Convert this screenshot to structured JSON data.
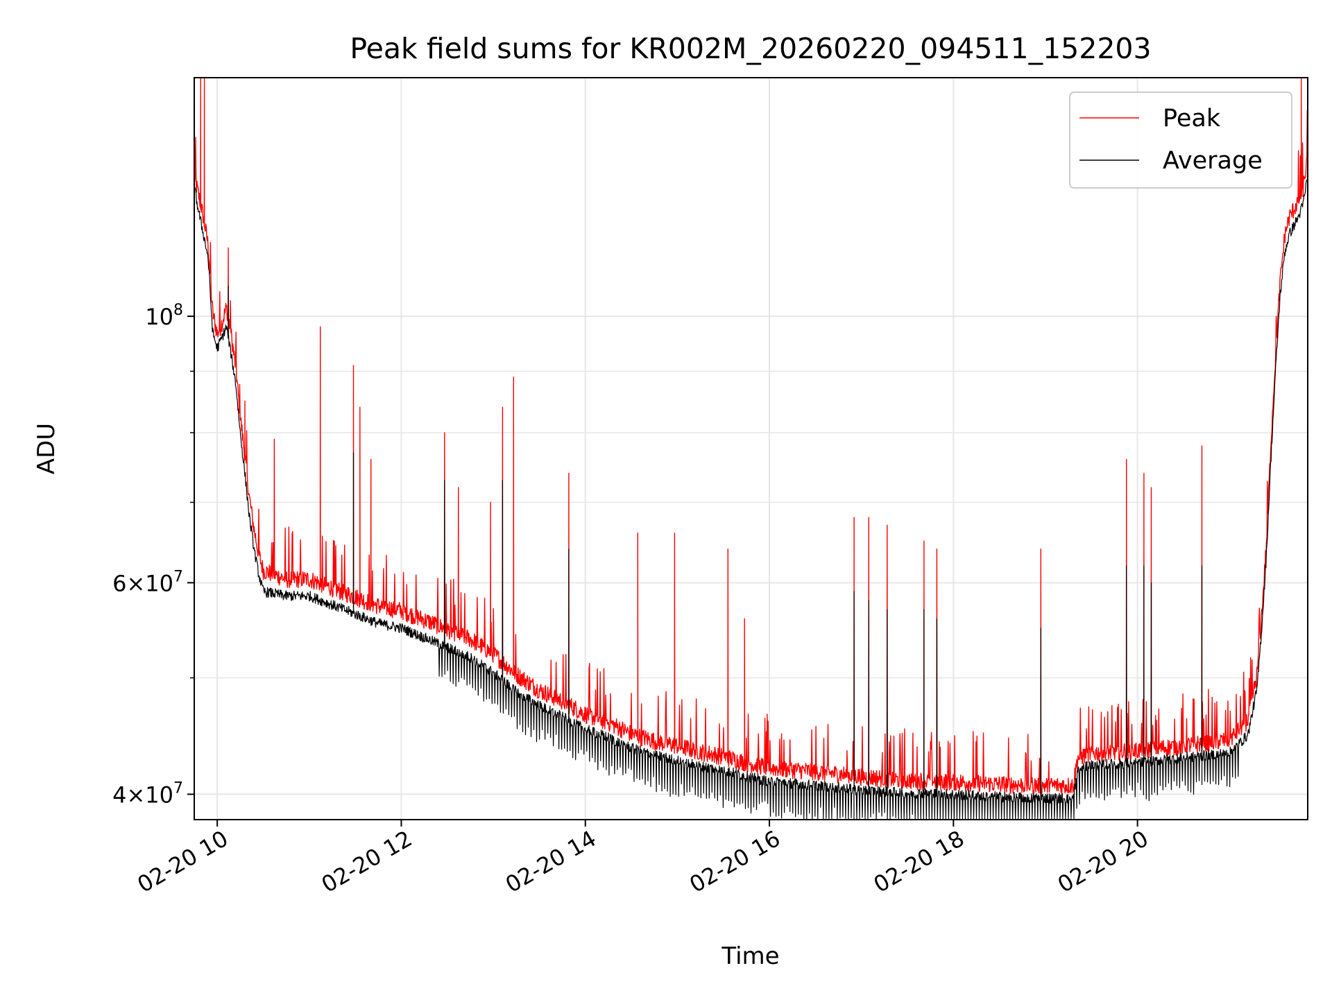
{
  "chart_data": {
    "type": "line",
    "title": "Peak field sums for KR002M_20260220_094511_152203",
    "xlabel": "Time",
    "ylabel": "ADU",
    "x_unit": "hours since 2026-02-20 00:00",
    "xlim": [
      9.75,
      21.85
    ],
    "ylim": [
      38100000,
      158000000
    ],
    "y_scale": "log",
    "grid": true,
    "legend_position": "upper right",
    "x_ticks": [
      {
        "value": 10,
        "label": "02-20 10"
      },
      {
        "value": 12,
        "label": "02-20 12"
      },
      {
        "value": 14,
        "label": "02-20 14"
      },
      {
        "value": 16,
        "label": "02-20 16"
      },
      {
        "value": 18,
        "label": "02-20 18"
      },
      {
        "value": 20,
        "label": "02-20 20"
      }
    ],
    "y_ticks": [
      {
        "value": 100000000,
        "base": "10",
        "exp": "8"
      },
      {
        "value": 60000000,
        "mant": "6",
        "base": "10",
        "exp": "7"
      },
      {
        "value": 40000000,
        "mant": "4",
        "base": "10",
        "exp": "7"
      }
    ],
    "y_minor_ticks": [
      50000000,
      70000000,
      80000000,
      90000000
    ],
    "colors": {
      "peak": "#ff0000",
      "average": "#000000",
      "grid": "#e6e6e6"
    },
    "series": [
      {
        "name": "Peak",
        "color": "#ff0000",
        "baseline": {
          "x": [
            9.75,
            9.8,
            9.85,
            9.9,
            9.95,
            10.0,
            10.05,
            10.1,
            10.15,
            10.2,
            10.25,
            10.3,
            10.35,
            10.4,
            10.45,
            10.5,
            10.75,
            11.0,
            11.25,
            11.5,
            11.75,
            12.0,
            12.25,
            12.5,
            12.75,
            13.0,
            13.25,
            13.5,
            13.75,
            14.0,
            14.25,
            14.5,
            14.75,
            15.0,
            15.25,
            15.5,
            15.75,
            16.0,
            16.5,
            17.0,
            17.5,
            18.0,
            18.5,
            19.0,
            19.3,
            19.35,
            19.5,
            20.0,
            20.5,
            21.0,
            21.2,
            21.3,
            21.35,
            21.4,
            21.45,
            21.5,
            21.55,
            21.6,
            21.65,
            21.7,
            21.75,
            21.8,
            21.85
          ],
          "y": [
            130000000,
            125000000,
            120000000,
            114000000,
            100000000,
            96000000,
            98000000,
            101000000,
            96000000,
            90000000,
            82000000,
            76000000,
            70000000,
            66000000,
            63000000,
            61000000,
            60000000,
            60000000,
            59000000,
            58000000,
            57000000,
            56500000,
            55500000,
            54500000,
            53500000,
            52000000,
            50000000,
            48500000,
            47500000,
            46300000,
            45600000,
            44600000,
            44000000,
            43600000,
            43100000,
            42700000,
            42200000,
            41800000,
            41500000,
            41100000,
            40800000,
            40700000,
            40500000,
            40400000,
            40400000,
            42600000,
            43000000,
            43200000,
            43600000,
            44100000,
            45800000,
            50000000,
            56000000,
            64000000,
            78000000,
            92000000,
            106000000,
            116000000,
            120000000,
            122000000,
            124000000,
            127000000,
            135000000
          ]
        },
        "spikes": [
          {
            "x": 9.82,
            "y": 158000000
          },
          {
            "x": 9.86,
            "y": 158000000
          },
          {
            "x": 10.12,
            "y": 114000000
          },
          {
            "x": 10.3,
            "y": 85000000
          },
          {
            "x": 10.62,
            "y": 79000000
          },
          {
            "x": 11.12,
            "y": 98000000
          },
          {
            "x": 11.48,
            "y": 91000000
          },
          {
            "x": 11.55,
            "y": 84000000
          },
          {
            "x": 11.67,
            "y": 76000000
          },
          {
            "x": 12.47,
            "y": 80000000
          },
          {
            "x": 12.62,
            "y": 72000000
          },
          {
            "x": 12.97,
            "y": 70000000
          },
          {
            "x": 13.1,
            "y": 84000000
          },
          {
            "x": 13.22,
            "y": 89000000
          },
          {
            "x": 13.82,
            "y": 74000000
          },
          {
            "x": 14.57,
            "y": 66000000
          },
          {
            "x": 14.97,
            "y": 66000000
          },
          {
            "x": 15.55,
            "y": 64000000
          },
          {
            "x": 15.73,
            "y": 56000000
          },
          {
            "x": 16.92,
            "y": 68000000
          },
          {
            "x": 17.08,
            "y": 68000000
          },
          {
            "x": 17.28,
            "y": 67000000
          },
          {
            "x": 17.68,
            "y": 65000000
          },
          {
            "x": 17.82,
            "y": 64000000
          },
          {
            "x": 18.95,
            "y": 64000000
          },
          {
            "x": 19.88,
            "y": 76000000
          },
          {
            "x": 20.07,
            "y": 74000000
          },
          {
            "x": 20.15,
            "y": 72000000
          },
          {
            "x": 20.7,
            "y": 78000000
          },
          {
            "x": 21.78,
            "y": 158000000
          }
        ]
      },
      {
        "name": "Average",
        "color": "#000000",
        "baseline": {
          "x": [
            9.75,
            9.8,
            9.85,
            9.9,
            9.95,
            10.0,
            10.05,
            10.1,
            10.15,
            10.2,
            10.25,
            10.3,
            10.35,
            10.4,
            10.45,
            10.5,
            10.75,
            11.0,
            11.25,
            11.5,
            11.75,
            12.0,
            12.25,
            12.5,
            12.75,
            13.0,
            13.25,
            13.5,
            13.75,
            14.0,
            14.25,
            14.5,
            14.75,
            15.0,
            15.25,
            15.5,
            15.75,
            16.0,
            16.5,
            17.0,
            17.5,
            18.0,
            18.5,
            19.0,
            19.3,
            19.35,
            19.5,
            20.0,
            20.5,
            21.0,
            21.2,
            21.3,
            21.35,
            21.4,
            21.45,
            21.5,
            21.55,
            21.6,
            21.65,
            21.7,
            21.75,
            21.8,
            21.85
          ],
          "y": [
            128000000,
            122000000,
            117000000,
            112000000,
            97000000,
            94000000,
            96000000,
            98000000,
            93000000,
            88000000,
            80000000,
            74000000,
            68000000,
            64000000,
            61000000,
            59000000,
            58500000,
            58500000,
            57500000,
            56500000,
            55500000,
            55000000,
            54000000,
            53000000,
            52000000,
            50500000,
            48700000,
            47400000,
            46400000,
            45300000,
            44600000,
            43700000,
            43100000,
            42700000,
            42200000,
            41900000,
            41400000,
            41000000,
            40700000,
            40300000,
            40100000,
            40000000,
            39800000,
            39700000,
            39700000,
            41900000,
            42300000,
            42500000,
            42900000,
            43300000,
            44800000,
            49000000,
            55000000,
            63000000,
            76000000,
            90000000,
            104000000,
            113000000,
            117000000,
            119000000,
            121000000,
            124000000,
            131000000
          ]
        },
        "spikes": [
          {
            "x": 10.12,
            "y": 106000000
          },
          {
            "x": 11.48,
            "y": 77000000
          },
          {
            "x": 12.47,
            "y": 73000000
          },
          {
            "x": 13.1,
            "y": 73000000
          },
          {
            "x": 13.82,
            "y": 64000000
          },
          {
            "x": 16.92,
            "y": 59000000
          },
          {
            "x": 17.08,
            "y": 58000000
          },
          {
            "x": 17.28,
            "y": 57000000
          },
          {
            "x": 17.68,
            "y": 57000000
          },
          {
            "x": 17.82,
            "y": 56000000
          },
          {
            "x": 18.95,
            "y": 55000000
          },
          {
            "x": 19.88,
            "y": 62000000
          },
          {
            "x": 20.07,
            "y": 62000000
          },
          {
            "x": 20.15,
            "y": 60000000
          },
          {
            "x": 20.7,
            "y": 62000000
          }
        ]
      }
    ]
  }
}
